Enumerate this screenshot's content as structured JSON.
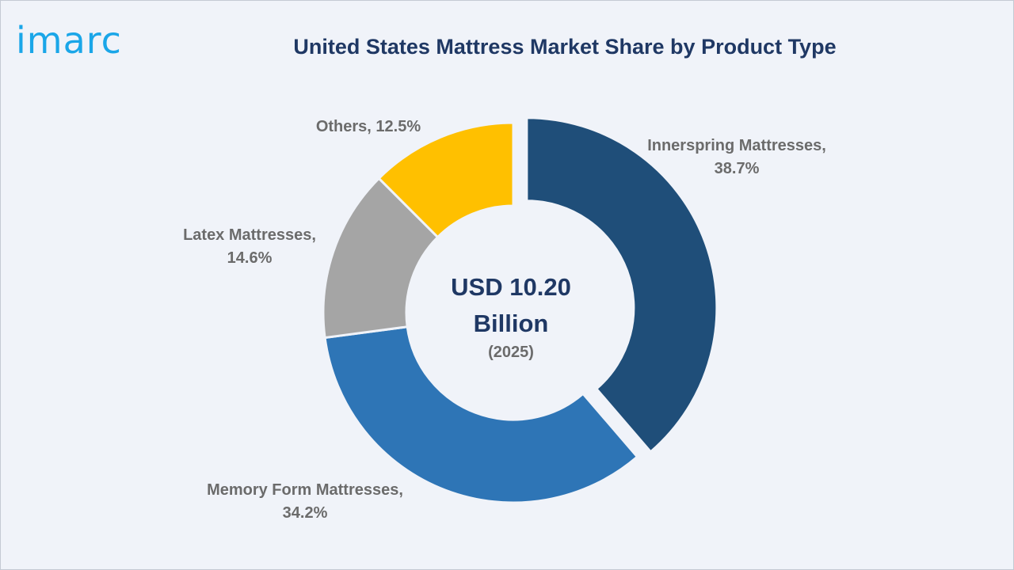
{
  "logo": {
    "text": "imarc"
  },
  "chart_data": {
    "type": "pie",
    "variant": "donut",
    "title": "United States Mattress Market Share by Product Type",
    "unit": "%",
    "center": {
      "value": "USD 10.20 Billion",
      "year": "(2025)"
    },
    "slices": [
      {
        "category": "Innerspring Mattresses",
        "value": 38.7,
        "label_line1": "Innerspring Mattresses,",
        "label_line2": "38.7%",
        "color": "#1f4e79",
        "exploded": true
      },
      {
        "category": "Memory Form Mattresses",
        "value": 34.2,
        "label_line1": "Memory Form Mattresses,",
        "label_line2": "34.2%",
        "color": "#2e75b6",
        "exploded": false
      },
      {
        "category": "Latex Mattresses",
        "value": 14.6,
        "label_line1": "Latex Mattresses,",
        "label_line2": "14.6%",
        "color": "#a5a5a5",
        "exploded": false
      },
      {
        "category": "Others",
        "value": 12.5,
        "label_line1": "Others, 12.5%",
        "label_line2": "",
        "color": "#ffc000",
        "exploded": false
      }
    ]
  }
}
